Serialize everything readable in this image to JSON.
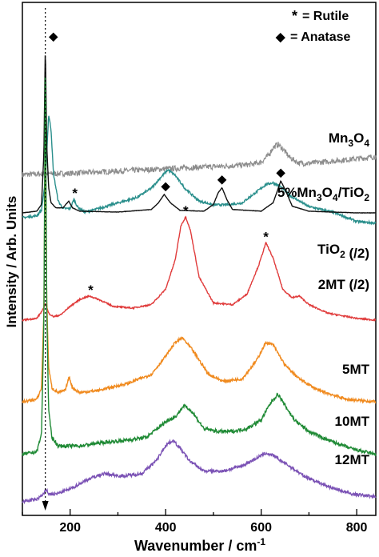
{
  "chart_data": {
    "type": "line",
    "xlabel": "Wavenumber / cm",
    "xlabel_sup": "-1",
    "ylabel": "Intensity / Arb. Units",
    "xlim": [
      100,
      840
    ],
    "xticks": [
      200,
      400,
      600,
      800
    ],
    "y_scale": "arbitrary (stacked spectra, baseline offsets)",
    "grid": false,
    "legend": [
      {
        "marker": "*",
        "text": "= Rutile"
      },
      {
        "marker": "◆",
        "text": "= Anatase"
      }
    ],
    "reference_line_x": 148,
    "series": [
      {
        "name": "Mn3O4",
        "label_main": "Mn",
        "label_sub1": "3",
        "label_mid": "O",
        "label_sub2": "4",
        "label_tail": "",
        "color": "#8c8c8c",
        "x": [
          100,
          150,
          200,
          250,
          300,
          350,
          400,
          450,
          500,
          550,
          580,
          600,
          615,
          625,
          635,
          645,
          660,
          680,
          700,
          750,
          800,
          840
        ],
        "y": [
          0.0,
          0.05,
          0.1,
          0.2,
          0.3,
          0.4,
          0.5,
          0.6,
          0.7,
          0.8,
          0.9,
          1.1,
          1.7,
          2.4,
          2.7,
          2.3,
          1.5,
          1.0,
          1.0,
          1.2,
          1.4,
          1.6
        ],
        "noise": 0.25
      },
      {
        "name": "5%Mn3O4/TiO2",
        "label_main": "5%Mn",
        "label_sub1": "3",
        "label_mid": "O",
        "label_sub2": "4",
        "label_tail": "/TiO",
        "label_sub3": "2",
        "color": "#2a8f8c",
        "x": [
          100,
          130,
          140,
          148,
          155,
          160,
          165,
          175,
          185,
          200,
          208,
          215,
          230,
          260,
          300,
          340,
          370,
          390,
          405,
          420,
          440,
          470,
          500,
          530,
          560,
          590,
          610,
          625,
          640,
          660,
          700,
          750,
          800,
          840
        ],
        "y": [
          0.0,
          0.1,
          0.4,
          2.0,
          5.6,
          4.8,
          2.4,
          0.9,
          0.5,
          0.5,
          1.0,
          0.6,
          0.3,
          0.5,
          0.8,
          1.1,
          1.6,
          2.2,
          2.6,
          2.3,
          1.6,
          0.9,
          0.7,
          0.7,
          0.8,
          1.4,
          1.8,
          1.9,
          1.7,
          1.2,
          0.6,
          0.3,
          -0.2,
          -0.3
        ],
        "noise": 0.06
      },
      {
        "name": "TiO2 (/2)",
        "label_main": "TiO",
        "label_sub1": "2",
        "label_mid": "",
        "label_sub2": "",
        "label_tail": " (/2)",
        "color": "#111111",
        "x": [
          100,
          130,
          140,
          145,
          148,
          151,
          155,
          160,
          170,
          185,
          197,
          205,
          220,
          300,
          370,
          385,
          397,
          410,
          430,
          480,
          500,
          510,
          518,
          528,
          540,
          600,
          625,
          635,
          641,
          650,
          665,
          700,
          750,
          800,
          840
        ],
        "y": [
          0.0,
          0.1,
          0.5,
          3.5,
          10.0,
          4.0,
          1.5,
          0.6,
          0.3,
          0.3,
          0.7,
          0.3,
          0.1,
          0.05,
          0.2,
          0.6,
          1.1,
          0.6,
          0.15,
          0.1,
          0.5,
          1.2,
          1.5,
          0.8,
          0.2,
          0.1,
          0.6,
          1.4,
          1.9,
          1.4,
          0.4,
          0.1,
          0.05,
          0.0,
          0.0
        ],
        "noise": 0.01
      },
      {
        "name": "2MT (/2)",
        "label_main": "2MT",
        "label_sub1": "",
        "label_mid": "",
        "label_sub2": "",
        "label_tail": " (/2)",
        "color": "#e03b3b",
        "x": [
          100,
          130,
          143,
          148,
          155,
          165,
          180,
          200,
          220,
          240,
          260,
          290,
          330,
          370,
          400,
          420,
          432,
          442,
          452,
          470,
          500,
          540,
          570,
          595,
          610,
          625,
          645,
          665,
          680,
          700,
          740,
          800,
          840
        ],
        "y": [
          0.0,
          0.1,
          0.6,
          1.0,
          0.4,
          0.2,
          0.3,
          0.8,
          1.2,
          1.4,
          1.2,
          0.8,
          0.7,
          0.9,
          1.8,
          3.5,
          5.5,
          6.0,
          5.2,
          2.5,
          1.0,
          0.9,
          1.5,
          3.2,
          4.5,
          3.6,
          1.8,
          1.3,
          1.4,
          0.9,
          0.4,
          0.1,
          0.0
        ],
        "noise": 0.04
      },
      {
        "name": "5MT",
        "label_main": "5MT",
        "label_sub1": "",
        "label_mid": "",
        "label_sub2": "",
        "label_tail": "",
        "color": "#f08a1e",
        "x": [
          100,
          130,
          140,
          145,
          148,
          151,
          155,
          162,
          175,
          190,
          198,
          205,
          220,
          260,
          320,
          370,
          400,
          420,
          435,
          455,
          490,
          520,
          560,
          590,
          610,
          625,
          650,
          680,
          720,
          780,
          840
        ],
        "y": [
          0.0,
          0.1,
          0.6,
          4.0,
          12.0,
          4.5,
          1.5,
          0.6,
          0.4,
          0.5,
          1.1,
          0.6,
          0.4,
          0.5,
          0.8,
          1.2,
          2.0,
          2.6,
          2.8,
          2.3,
          1.2,
          0.9,
          1.0,
          1.8,
          2.6,
          2.5,
          1.6,
          1.0,
          0.5,
          0.1,
          0.0
        ],
        "noise": 0.06
      },
      {
        "name": "10MT",
        "label_main": "10MT",
        "label_sub1": "",
        "label_mid": "",
        "label_sub2": "",
        "label_tail": "",
        "color": "#1f8a35",
        "x": [
          100,
          130,
          140,
          145,
          148,
          151,
          155,
          162,
          175,
          200,
          220,
          260,
          320,
          360,
          390,
          405,
          420,
          438,
          455,
          480,
          510,
          540,
          570,
          600,
          620,
          635,
          650,
          670,
          700,
          740,
          790,
          840
        ],
        "y": [
          0.0,
          0.1,
          0.7,
          4.5,
          14.0,
          5.0,
          1.5,
          0.6,
          0.3,
          0.3,
          0.3,
          0.4,
          0.5,
          0.6,
          1.0,
          1.2,
          1.3,
          1.7,
          1.5,
          0.9,
          0.8,
          0.8,
          0.9,
          1.2,
          1.8,
          2.1,
          1.7,
          1.2,
          0.8,
          0.5,
          0.2,
          0.0
        ],
        "noise": 0.06
      },
      {
        "name": "12MT",
        "label_main": "12MT",
        "label_sub1": "",
        "label_mid": "",
        "label_sub2": "",
        "label_tail": "",
        "color": "#7b52b5",
        "x": [
          100,
          130,
          145,
          150,
          155,
          170,
          200,
          240,
          270,
          310,
          350,
          380,
          400,
          415,
          430,
          450,
          480,
          520,
          560,
          590,
          610,
          625,
          650,
          690,
          740,
          790,
          840
        ],
        "y": [
          0.0,
          0.1,
          0.3,
          0.5,
          0.3,
          0.3,
          0.5,
          0.9,
          1.1,
          1.0,
          1.1,
          1.6,
          2.2,
          2.4,
          2.1,
          1.6,
          1.2,
          1.2,
          1.4,
          1.7,
          1.9,
          1.8,
          1.5,
          1.0,
          0.6,
          0.3,
          0.2
        ],
        "noise": 0.06
      }
    ],
    "markers": [
      {
        "symbol": "◆",
        "x": 165,
        "series": "TiO2 (/2)",
        "peak_value": 10.0
      },
      {
        "symbol": "*",
        "x": 210,
        "series": "5%Mn3O4/TiO2",
        "peak_value": 1.0
      },
      {
        "symbol": "◆",
        "x": 400,
        "series": "TiO2 (/2)",
        "peak_value": 1.1
      },
      {
        "symbol": "◆",
        "x": 518,
        "series": "TiO2 (/2)",
        "peak_value": 1.5
      },
      {
        "symbol": "◆",
        "x": 641,
        "series": "TiO2 (/2)",
        "peak_value": 1.9
      },
      {
        "symbol": "*",
        "x": 243,
        "series": "2MT (/2)",
        "peak_value": 1.4
      },
      {
        "symbol": "*",
        "x": 442,
        "series": "2MT (/2)",
        "peak_value": 6.0
      },
      {
        "symbol": "*",
        "x": 610,
        "series": "2MT (/2)",
        "peak_value": 4.5
      }
    ]
  }
}
